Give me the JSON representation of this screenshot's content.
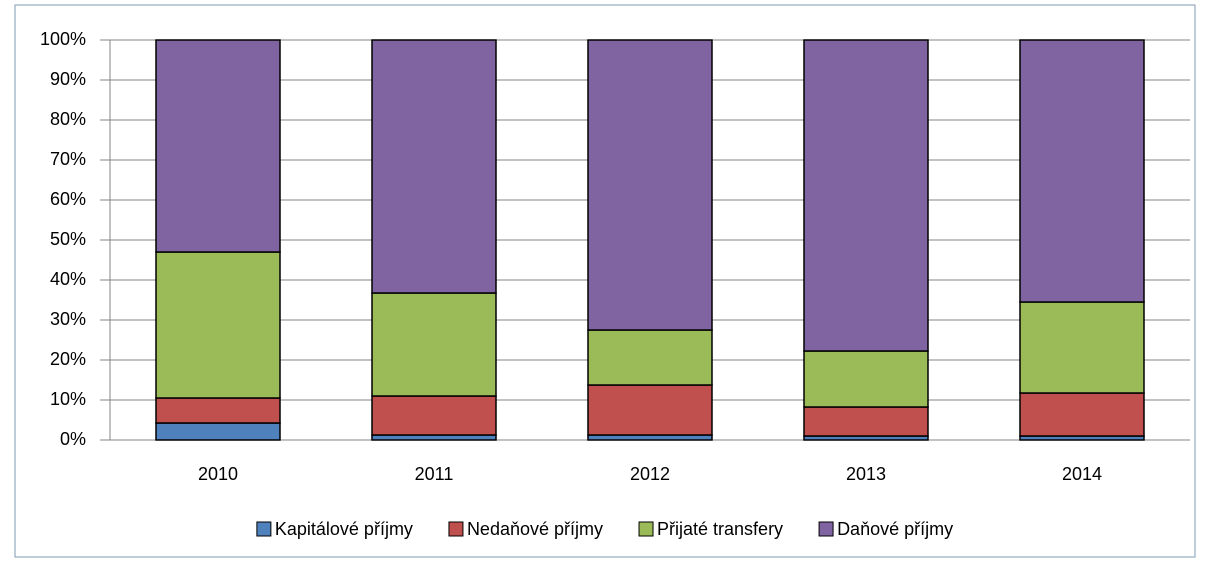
{
  "chart_data": {
    "type": "bar",
    "stacked": true,
    "categories": [
      "2010",
      "2011",
      "2012",
      "2013",
      "2014"
    ],
    "series": [
      {
        "name": "Kapitálové příjmy",
        "color": "#4f81bd",
        "values": [
          4.25,
          1.25,
          1.25,
          1,
          1
        ]
      },
      {
        "name": "Nedaňové příjmy",
        "color": "#c0504d",
        "values": [
          6.25,
          9.75,
          12.5,
          7.25,
          10.75
        ]
      },
      {
        "name": "Přijaté transfery",
        "color": "#9bbb59",
        "values": [
          36.5,
          25.75,
          13.75,
          14,
          22.75
        ]
      },
      {
        "name": "Daňové příjmy",
        "color": "#8064a2",
        "values": [
          53,
          63.25,
          72.5,
          77.75,
          65.5
        ]
      }
    ],
    "ylim": [
      0,
      100
    ],
    "yticks": [
      {
        "value": 0,
        "label": "0%"
      },
      {
        "value": 10,
        "label": "10%"
      },
      {
        "value": 20,
        "label": "20%"
      },
      {
        "value": 30,
        "label": "30%"
      },
      {
        "value": 40,
        "label": "40%"
      },
      {
        "value": 50,
        "label": "50%"
      },
      {
        "value": 60,
        "label": "60%"
      },
      {
        "value": 70,
        "label": "70%"
      },
      {
        "value": 80,
        "label": "80%"
      },
      {
        "value": 90,
        "label": "90%"
      },
      {
        "value": 100,
        "label": "100%"
      }
    ],
    "grid": true,
    "legend": "bottom"
  }
}
